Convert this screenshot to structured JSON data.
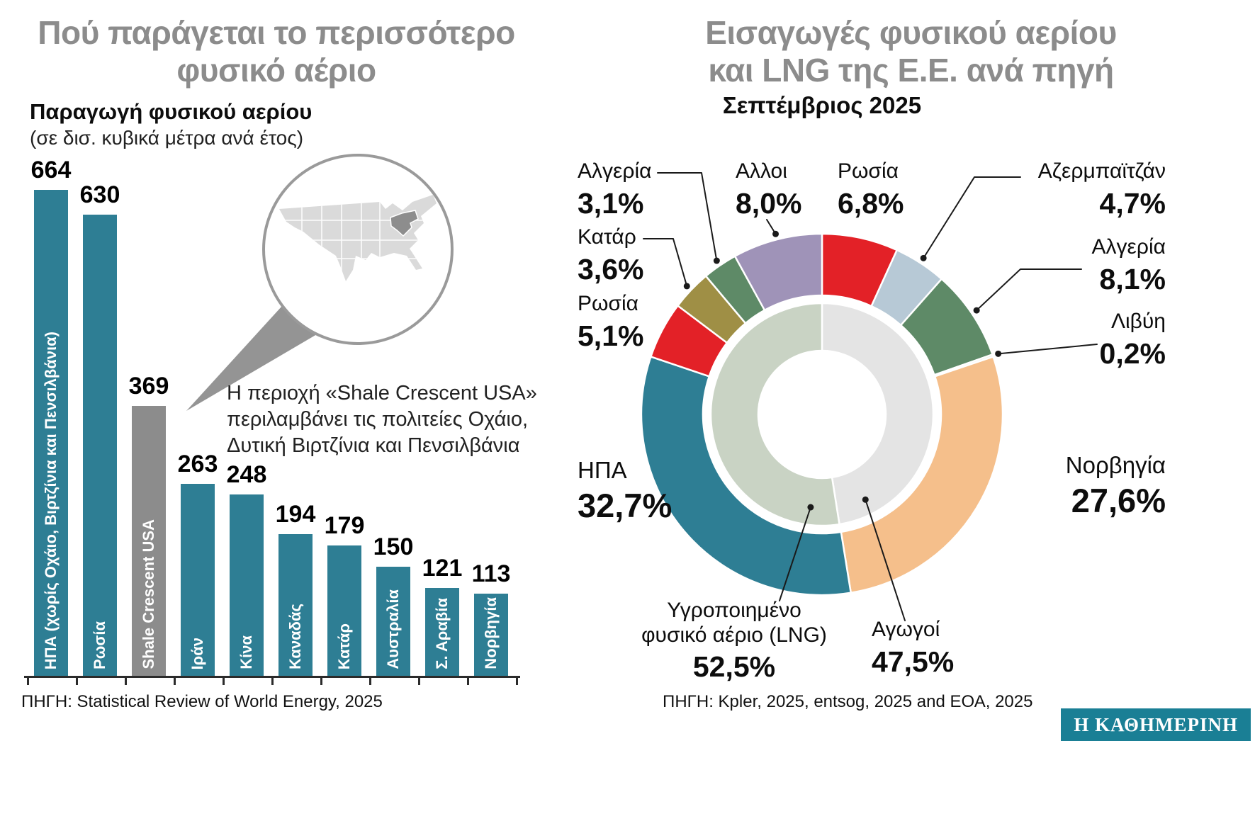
{
  "branding": {
    "logo_text": "Η ΚΑΘΗΜΕΡΙΝΗ",
    "logo_bg": "#1a7f95"
  },
  "chart_data": [
    {
      "type": "bar",
      "title_line1": "Πού παράγεται το περισσότερο",
      "title_line2": "φυσικό αέριο",
      "heading": "Παραγωγή φυσικού αερίου",
      "unit_note": "(σε δισ. κυβικά μέτρα ανά έτος)",
      "categories": [
        "ΗΠΑ (χωρίς Οχάιο, Βιρτζίνια και Πενσιλβάνια)",
        "Ρωσία",
        "Shale Crescent USA",
        "Ιράν",
        "Κίνα",
        "Καναδάς",
        "Κατάρ",
        "Αυστραλία",
        "Σ. Αραβία",
        "Νορβηγία"
      ],
      "values": [
        664,
        630,
        369,
        263,
        248,
        194,
        179,
        150,
        121,
        113
      ],
      "bar_colors": [
        "#2e7e94",
        "#2e7e94",
        "#8c8c8c",
        "#2e7e94",
        "#2e7e94",
        "#2e7e94",
        "#2e7e94",
        "#2e7e94",
        "#2e7e94",
        "#2e7e94"
      ],
      "ylim": [
        0,
        700
      ],
      "grid": false,
      "callout": {
        "line1": "Η περιοχή «Shale Crescent USA»",
        "line2": "περιλαμβάνει τις πολιτείες Οχάιο,",
        "line3": "Δυτική Βιρτζίνια και Πενσιλβάνια"
      },
      "source": "ΠΗΓΗ: Statistical Review of World Energy, 2025"
    },
    {
      "type": "pie",
      "variant": "two-ring-donut",
      "title_line1": "Εισαγωγές φυσικού αερίου",
      "title_line2": "και LNG της Ε.Ε. ανά πηγή",
      "subtitle": "Σεπτέμβριος 2025",
      "outer_ring": {
        "segments": [
          {
            "id": "russia_top",
            "label": "Ρωσία",
            "value": 6.8,
            "display": "6,8%",
            "color": "#e32127"
          },
          {
            "id": "azerbaijan",
            "label": "Αζερμπαϊτζάν",
            "value": 4.7,
            "display": "4,7%",
            "color": "#b7c9d6"
          },
          {
            "id": "algeria_right",
            "label": "Αλγερία",
            "value": 8.1,
            "display": "8,1%",
            "color": "#5e8a67"
          },
          {
            "id": "libya",
            "label": "Λιβύη",
            "value": 0.2,
            "display": "0,2%",
            "color": "#e8ece5"
          },
          {
            "id": "norway",
            "label": "Νορβηγία",
            "value": 27.6,
            "display": "27,6%",
            "color": "#f5bf8b"
          },
          {
            "id": "usa",
            "label": "ΗΠΑ",
            "value": 32.7,
            "display": "32,7%",
            "color": "#2e7e94"
          },
          {
            "id": "russia_left",
            "label": "Ρωσία",
            "value": 5.1,
            "display": "5,1%",
            "color": "#e32127"
          },
          {
            "id": "qatar",
            "label": "Κατάρ",
            "value": 3.6,
            "display": "3,6%",
            "color": "#9f8f45"
          },
          {
            "id": "algeria_left",
            "label": "Αλγερία",
            "value": 3.1,
            "display": "3,1%",
            "color": "#5e8a67"
          },
          {
            "id": "others",
            "label": "Αλλοι",
            "value": 8.0,
            "display": "8,0%",
            "color": "#9f93b8"
          }
        ]
      },
      "inner_ring": {
        "segments": [
          {
            "id": "pipelines",
            "label": "Αγωγοί",
            "value": 47.5,
            "display": "47,5%",
            "color": "#e4e4e4"
          },
          {
            "id": "lng",
            "label": "Υγροποιημένο φυσικό αέριο (LNG)",
            "value": 52.5,
            "display": "52,5%",
            "color": "#c9d3c4"
          }
        ]
      },
      "source": "ΠΗΓΗ: Kpler, 2025, entsog, 2025 and ΕΟΑ, 2025"
    }
  ]
}
